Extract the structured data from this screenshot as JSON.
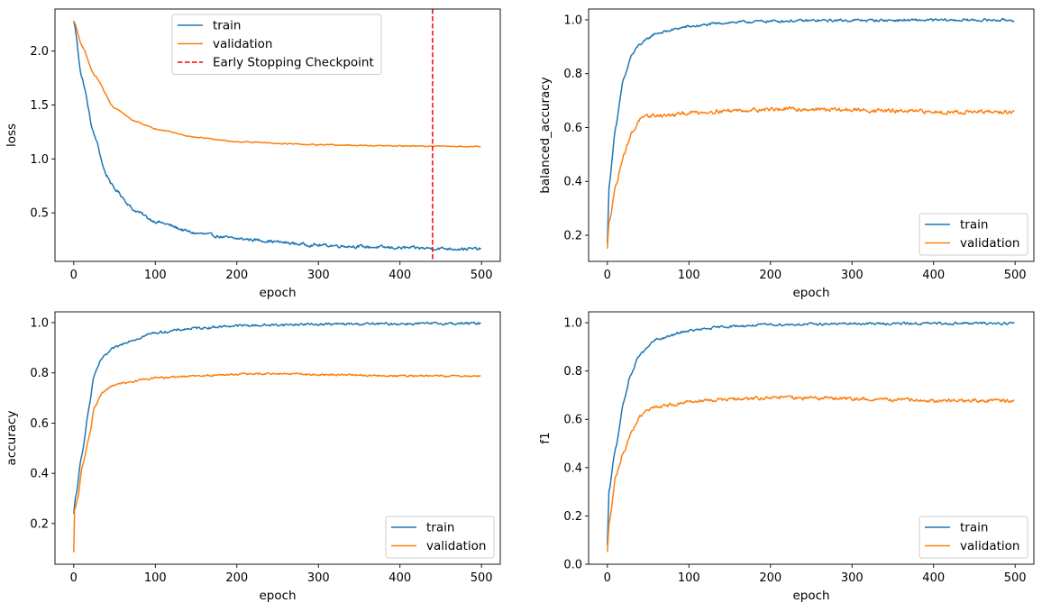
{
  "colors": {
    "train": "#1f77b4",
    "validation": "#ff7f0e",
    "checkpoint": "#ff0000",
    "axes": "#000000",
    "legend_border": "#cccccc"
  },
  "chart_data": [
    {
      "type": "line",
      "id": "loss",
      "title": "",
      "xlabel": "epoch",
      "ylabel": "loss",
      "xlim": [
        -23,
        523
      ],
      "ylim": [
        0.05,
        2.39
      ],
      "xticks": [
        0,
        100,
        200,
        300,
        400,
        500
      ],
      "xtick_labels": [
        "0",
        "100",
        "200",
        "300",
        "400",
        "500"
      ],
      "yticks": [
        0.5,
        1.0,
        1.5,
        2.0
      ],
      "ytick_labels": [
        "0.5",
        "1.0",
        "1.5",
        "2.0"
      ],
      "grid": false,
      "legend": {
        "placement": "upper-center",
        "entries": [
          "train",
          "validation",
          "Early Stopping Checkpoint"
        ]
      },
      "vline": {
        "x": 440,
        "label": "Early Stopping Checkpoint",
        "style": "dashed"
      },
      "series": [
        {
          "name": "train",
          "anchors": [
            [
              0,
              2.28
            ],
            [
              10,
              1.75
            ],
            [
              25,
              1.22
            ],
            [
              40,
              0.85
            ],
            [
              50,
              0.72
            ],
            [
              75,
              0.52
            ],
            [
              100,
              0.42
            ],
            [
              150,
              0.31
            ],
            [
              200,
              0.26
            ],
            [
              300,
              0.2
            ],
            [
              400,
              0.175
            ],
            [
              499,
              0.165
            ]
          ],
          "noise": 0.012
        },
        {
          "name": "validation",
          "anchors": [
            [
              0,
              2.28
            ],
            [
              10,
              2.05
            ],
            [
              25,
              1.78
            ],
            [
              50,
              1.47
            ],
            [
              75,
              1.35
            ],
            [
              100,
              1.28
            ],
            [
              150,
              1.2
            ],
            [
              200,
              1.16
            ],
            [
              300,
              1.13
            ],
            [
              400,
              1.12
            ],
            [
              499,
              1.115
            ]
          ],
          "noise": 0.004
        }
      ]
    },
    {
      "type": "line",
      "id": "balanced_accuracy",
      "title": "",
      "xlabel": "epoch",
      "ylabel": "balanced_accuracy",
      "xlim": [
        -23,
        523
      ],
      "ylim": [
        0.103,
        1.04
      ],
      "xticks": [
        0,
        100,
        200,
        300,
        400,
        500
      ],
      "xtick_labels": [
        "0",
        "100",
        "200",
        "300",
        "400",
        "500"
      ],
      "yticks": [
        0.2,
        0.4,
        0.6,
        0.8,
        1.0
      ],
      "ytick_labels": [
        "0.2",
        "0.4",
        "0.6",
        "0.8",
        "1.0"
      ],
      "grid": false,
      "legend": {
        "placement": "lower-right",
        "entries": [
          "train",
          "validation"
        ]
      },
      "series": [
        {
          "name": "train",
          "anchors": [
            [
              0,
              0.17
            ],
            [
              2,
              0.38
            ],
            [
              10,
              0.6
            ],
            [
              20,
              0.78
            ],
            [
              30,
              0.87
            ],
            [
              40,
              0.91
            ],
            [
              60,
              0.95
            ],
            [
              100,
              0.975
            ],
            [
              150,
              0.99
            ],
            [
              200,
              0.995
            ],
            [
              300,
              0.998
            ],
            [
              499,
              0.999
            ]
          ],
          "noise": 0.004
        },
        {
          "name": "validation",
          "anchors": [
            [
              0,
              0.15
            ],
            [
              2,
              0.25
            ],
            [
              10,
              0.38
            ],
            [
              20,
              0.5
            ],
            [
              30,
              0.58
            ],
            [
              40,
              0.63
            ],
            [
              55,
              0.645
            ],
            [
              80,
              0.645
            ],
            [
              100,
              0.655
            ],
            [
              150,
              0.663
            ],
            [
              200,
              0.668
            ],
            [
              250,
              0.668
            ],
            [
              300,
              0.665
            ],
            [
              400,
              0.658
            ],
            [
              499,
              0.657
            ]
          ],
          "noise": 0.006
        }
      ]
    },
    {
      "type": "line",
      "id": "accuracy",
      "title": "",
      "xlabel": "epoch",
      "ylabel": "accuracy",
      "xlim": [
        -23,
        523
      ],
      "ylim": [
        0.038,
        1.043
      ],
      "xticks": [
        0,
        100,
        200,
        300,
        400,
        500
      ],
      "xtick_labels": [
        "0",
        "100",
        "200",
        "300",
        "400",
        "500"
      ],
      "yticks": [
        0.2,
        0.4,
        0.6,
        0.8,
        1.0
      ],
      "ytick_labels": [
        "0.2",
        "0.4",
        "0.6",
        "0.8",
        "1.0"
      ],
      "grid": false,
      "legend": {
        "placement": "lower-right",
        "entries": [
          "train",
          "validation"
        ]
      },
      "series": [
        {
          "name": "train",
          "anchors": [
            [
              0,
              0.24
            ],
            [
              2,
              0.3
            ],
            [
              10,
              0.47
            ],
            [
              18,
              0.65
            ],
            [
              25,
              0.79
            ],
            [
              35,
              0.86
            ],
            [
              50,
              0.9
            ],
            [
              70,
              0.93
            ],
            [
              100,
              0.96
            ],
            [
              150,
              0.978
            ],
            [
              200,
              0.988
            ],
            [
              300,
              0.994
            ],
            [
              499,
              0.997
            ]
          ],
          "noise": 0.004
        },
        {
          "name": "validation",
          "anchors": [
            [
              0,
              0.085
            ],
            [
              1,
              0.25
            ],
            [
              5,
              0.3
            ],
            [
              10,
              0.42
            ],
            [
              20,
              0.56
            ],
            [
              25,
              0.66
            ],
            [
              35,
              0.72
            ],
            [
              45,
              0.745
            ],
            [
              60,
              0.76
            ],
            [
              100,
              0.78
            ],
            [
              150,
              0.787
            ],
            [
              200,
              0.795
            ],
            [
              250,
              0.797
            ],
            [
              300,
              0.793
            ],
            [
              400,
              0.788
            ],
            [
              499,
              0.788
            ]
          ],
          "noise": 0.003
        }
      ]
    },
    {
      "type": "line",
      "id": "f1",
      "title": "",
      "xlabel": "epoch",
      "ylabel": "f1",
      "xlim": [
        -23,
        523
      ],
      "ylim": [
        0.0,
        1.045
      ],
      "xticks": [
        0,
        100,
        200,
        300,
        400,
        500
      ],
      "xtick_labels": [
        "0",
        "100",
        "200",
        "300",
        "400",
        "500"
      ],
      "yticks": [
        0.0,
        0.2,
        0.4,
        0.6,
        0.8,
        1.0
      ],
      "ytick_labels": [
        "0.0",
        "0.2",
        "0.4",
        "0.6",
        "0.8",
        "1.0"
      ],
      "grid": false,
      "legend": {
        "placement": "lower-right",
        "entries": [
          "train",
          "validation"
        ]
      },
      "series": [
        {
          "name": "train",
          "anchors": [
            [
              0,
              0.08
            ],
            [
              2,
              0.3
            ],
            [
              10,
              0.48
            ],
            [
              20,
              0.67
            ],
            [
              28,
              0.78
            ],
            [
              40,
              0.87
            ],
            [
              60,
              0.93
            ],
            [
              100,
              0.967
            ],
            [
              150,
              0.985
            ],
            [
              200,
              0.992
            ],
            [
              300,
              0.996
            ],
            [
              499,
              0.998
            ]
          ],
          "noise": 0.004
        },
        {
          "name": "validation",
          "anchors": [
            [
              0,
              0.05
            ],
            [
              2,
              0.17
            ],
            [
              10,
              0.36
            ],
            [
              20,
              0.46
            ],
            [
              30,
              0.55
            ],
            [
              40,
              0.61
            ],
            [
              55,
              0.65
            ],
            [
              80,
              0.66
            ],
            [
              100,
              0.675
            ],
            [
              150,
              0.683
            ],
            [
              200,
              0.69
            ],
            [
              250,
              0.688
            ],
            [
              300,
              0.685
            ],
            [
              400,
              0.677
            ],
            [
              499,
              0.677
            ]
          ],
          "noise": 0.006
        }
      ]
    }
  ]
}
